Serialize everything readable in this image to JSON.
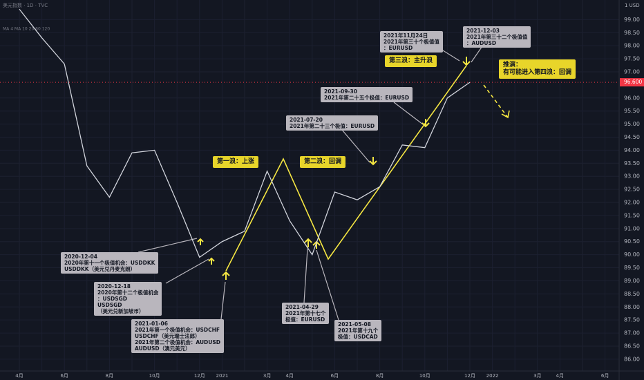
{
  "chart_data": {
    "type": "line",
    "symbol": "美元指数 · 1D · TVC",
    "indicator": "MA 4 MA 10 20 60 120",
    "currency": "1 USD",
    "categories": [
      "4月",
      null,
      "6月",
      null,
      "8月",
      null,
      "10月",
      null,
      "12月",
      "2021",
      null,
      "3月",
      "4月",
      null,
      "6月",
      null,
      "8月",
      null,
      "10月",
      null,
      "12月",
      "2022",
      null,
      "3月",
      "4月",
      null,
      "6月"
    ],
    "values": [
      99.4,
      98.3,
      97.3,
      93.4,
      92.2,
      93.9,
      94.0,
      92.0,
      89.9,
      90.5,
      90.9,
      93.2,
      91.3,
      90.0,
      92.4,
      92.1,
      92.6,
      94.2,
      94.1,
      96.0,
      96.6,
      null,
      null,
      null,
      null,
      null,
      null
    ],
    "color": "#d1d4dc",
    "last_price": {
      "value": 96.6,
      "label": "96.600"
    },
    "ylim": [
      85.6,
      99.75
    ],
    "yticks": [
      {
        "value": 86,
        "label": "86.00"
      },
      {
        "value": 86.5,
        "label": "86.50"
      },
      {
        "value": 87,
        "label": "87.00"
      },
      {
        "value": 87.5,
        "label": "87.50"
      },
      {
        "value": 88,
        "label": "88.00"
      },
      {
        "value": 88.5,
        "label": "88.50"
      },
      {
        "value": 89,
        "label": "89.00"
      },
      {
        "value": 89.5,
        "label": "89.50"
      },
      {
        "value": 90,
        "label": "90.00"
      },
      {
        "value": 90.5,
        "label": "90.50"
      },
      {
        "value": 91,
        "label": "91.00"
      },
      {
        "value": 91.5,
        "label": "91.50"
      },
      {
        "value": 92,
        "label": "92.00"
      },
      {
        "value": 92.5,
        "label": "92.50"
      },
      {
        "value": 93,
        "label": "93.00"
      },
      {
        "value": 93.5,
        "label": "93.50"
      },
      {
        "value": 94,
        "label": "94.00"
      },
      {
        "value": 94.5,
        "label": "94.50"
      },
      {
        "value": 95,
        "label": "95.00"
      },
      {
        "value": 95.5,
        "label": "95.50"
      },
      {
        "value": 96,
        "label": "96.00"
      },
      {
        "value": 97,
        "label": "97.00"
      },
      {
        "value": 97.5,
        "label": "97.50"
      },
      {
        "value": 98,
        "label": "98.00"
      },
      {
        "value": 98.5,
        "label": "98.50"
      },
      {
        "value": 99,
        "label": "99.00"
      }
    ],
    "grid": true,
    "annotations": [
      {
        "style": "gray",
        "lines": [
          "2020-12-04",
          "2020年第十一个极值机会：USDDKK",
          "USDDKK（美元兑丹麦克朗）"
        ]
      },
      {
        "style": "gray",
        "lines": [
          "2020-12-18",
          "2020年第十二个极值机会",
          "：USDSGD",
          "USDSGD",
          "（美元兑新加坡币）"
        ]
      },
      {
        "style": "gray",
        "lines": [
          "2021-01-06",
          "2021年第一个极值机会：USDCHF",
          "USDCHF（美元瑞士法郎）",
          "2021年第二个极值机会：AUDUSD",
          "AUDUSD（澳元美元）"
        ]
      },
      {
        "style": "gray",
        "lines": [
          "2021-04-29",
          "2021年第十七个",
          "极值：EURUSD"
        ]
      },
      {
        "style": "gray",
        "lines": [
          "2021-05-08",
          "2021年第十九个",
          "极值：USDCAD"
        ]
      },
      {
        "style": "gray",
        "lines": [
          "2021-07-20",
          "2021年第二十三个极值：EURUSD"
        ]
      },
      {
        "style": "gray",
        "lines": [
          "2021-09-30",
          "2021年第二十五个极值：EURUSD"
        ]
      },
      {
        "style": "gray",
        "lines": [
          "2021年11月24日",
          "2021年第三十个极值值",
          "：EURUSD"
        ]
      },
      {
        "style": "gray",
        "lines": [
          "2021-12-03",
          "2021年第三十二个极值值",
          "：AUDUSD"
        ]
      },
      {
        "style": "yellow",
        "lines": [
          "第一浪：上涨"
        ]
      },
      {
        "style": "yellow",
        "lines": [
          "第二浪：回调"
        ]
      },
      {
        "style": "yellow",
        "lines": [
          "第三浪：主升浪"
        ]
      },
      {
        "style": "yellow",
        "lines": [
          "推演：",
          "有可能进入第四浪：回调"
        ]
      }
    ]
  }
}
